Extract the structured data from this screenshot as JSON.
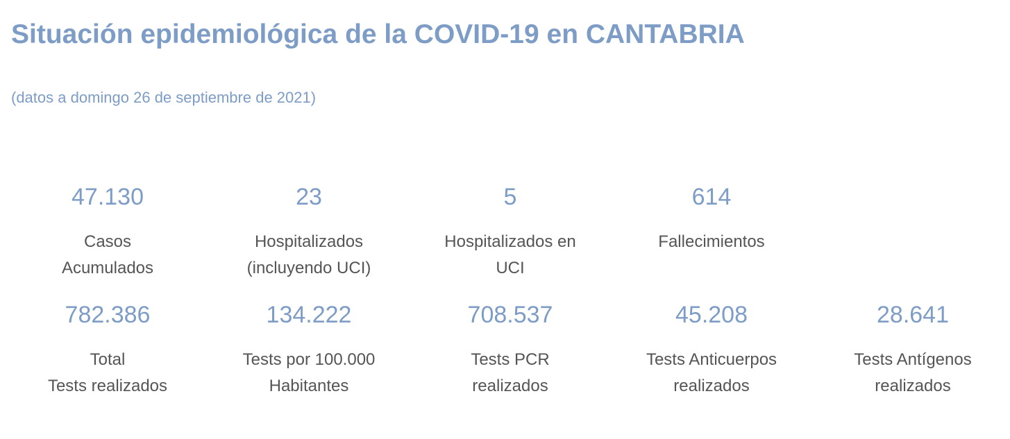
{
  "header": {
    "title": "Situación epidemiológica de la COVID-19 en CANTABRIA",
    "date_note": "(datos a domingo 26 de septiembre de 2021)"
  },
  "stats_row1": [
    {
      "value": "47.130",
      "label": "Casos\nAcumulados"
    },
    {
      "value": "23",
      "label": "Hospitalizados\n(incluyendo UCI)"
    },
    {
      "value": "5",
      "label": "Hospitalizados en\nUCI"
    },
    {
      "value": "614",
      "label": "Fallecimientos"
    }
  ],
  "stats_row2": [
    {
      "value": "782.386",
      "label": "Total\nTests realizados"
    },
    {
      "value": "134.222",
      "label": "Tests por 100.000\nHabitantes"
    },
    {
      "value": "708.537",
      "label": "Tests PCR\nrealizados"
    },
    {
      "value": "45.208",
      "label": "Tests Anticuerpos\nrealizados"
    },
    {
      "value": "28.641",
      "label": "Tests Antígenos\nrealizados"
    }
  ],
  "colors": {
    "accent": "#7d9cc6",
    "label_text": "#555555",
    "background": "#ffffff"
  }
}
